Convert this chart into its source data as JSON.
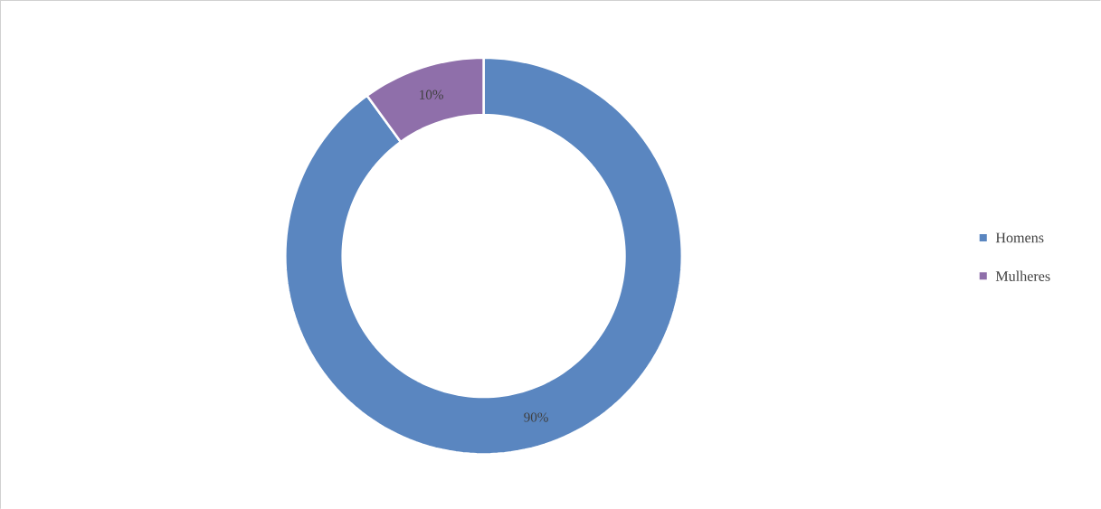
{
  "chart_data": {
    "type": "donut",
    "categories": [
      "Homens",
      "Mulheres"
    ],
    "values": [
      90,
      10
    ],
    "colors": [
      "#5a86c0",
      "#8f6faa"
    ],
    "value_labels": [
      "90%",
      "10%"
    ],
    "legend": "right"
  }
}
